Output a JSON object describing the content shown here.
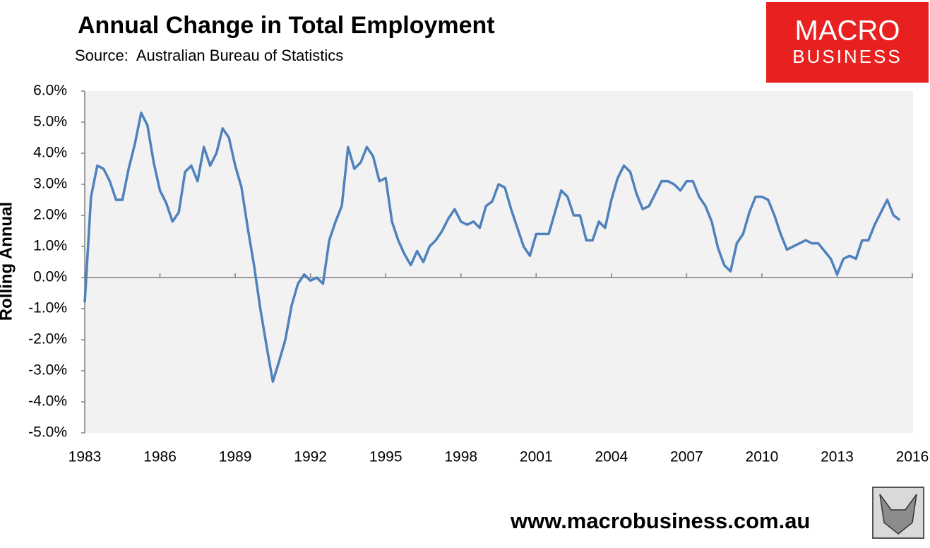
{
  "chart_data": {
    "type": "line",
    "title": "Annual Change in Total Employment",
    "subtitle": "Source:  Australian Bureau of Statistics",
    "y_label": "Rolling Annual",
    "xlim": [
      1983,
      2016
    ],
    "xticks": [
      1983,
      1986,
      1989,
      1992,
      1995,
      1998,
      2001,
      2004,
      2007,
      2010,
      2013,
      2016
    ],
    "ylim": [
      -5,
      6
    ],
    "yticks": [
      {
        "value": -5,
        "label": "-5.0%"
      },
      {
        "value": -4,
        "label": "-4.0%"
      },
      {
        "value": -3,
        "label": "-3.0%"
      },
      {
        "value": -2,
        "label": "-2.0%"
      },
      {
        "value": -1,
        "label": "-1.0%"
      },
      {
        "value": 0,
        "label": "0.0%"
      },
      {
        "value": 1,
        "label": "1.0%"
      },
      {
        "value": 2,
        "label": "2.0%"
      },
      {
        "value": 3,
        "label": "3.0%"
      },
      {
        "value": 4,
        "label": "4.0%"
      },
      {
        "value": 5,
        "label": "5.0%"
      },
      {
        "value": 6,
        "label": "6.0%"
      }
    ],
    "zero_line": true,
    "grid": false,
    "x": [
      1983,
      1983.25,
      1983.5,
      1983.75,
      1984,
      1984.25,
      1984.5,
      1984.75,
      1985,
      1985.25,
      1985.5,
      1985.75,
      1986,
      1986.25,
      1986.5,
      1986.75,
      1987,
      1987.25,
      1987.5,
      1987.75,
      1988,
      1988.25,
      1988.5,
      1988.75,
      1989,
      1989.25,
      1989.5,
      1989.75,
      1990,
      1990.25,
      1990.5,
      1990.75,
      1991,
      1991.25,
      1991.5,
      1991.75,
      1992,
      1992.25,
      1992.5,
      1992.75,
      1993,
      1993.25,
      1993.5,
      1993.75,
      1994,
      1994.25,
      1994.5,
      1994.75,
      1995,
      1995.25,
      1995.5,
      1995.75,
      1996,
      1996.25,
      1996.5,
      1996.75,
      1997,
      1997.25,
      1997.5,
      1997.75,
      1998,
      1998.25,
      1998.5,
      1998.75,
      1999,
      1999.25,
      1999.5,
      1999.75,
      2000,
      2000.25,
      2000.5,
      2000.75,
      2001,
      2001.25,
      2001.5,
      2001.75,
      2002,
      2002.25,
      2002.5,
      2002.75,
      2003,
      2003.25,
      2003.5,
      2003.75,
      2004,
      2004.25,
      2004.5,
      2004.75,
      2005,
      2005.25,
      2005.5,
      2005.75,
      2006,
      2006.25,
      2006.5,
      2006.75,
      2007,
      2007.25,
      2007.5,
      2007.75,
      2008,
      2008.25,
      2008.5,
      2008.75,
      2009,
      2009.25,
      2009.5,
      2009.75,
      2010,
      2010.25,
      2010.5,
      2010.75,
      2011,
      2011.25,
      2011.5,
      2011.75,
      2012,
      2012.25,
      2012.5,
      2012.75,
      2013,
      2013.25,
      2013.5,
      2013.75,
      2014,
      2014.25,
      2014.5,
      2014.75,
      2015,
      2015.25,
      2015.5
    ],
    "series": [
      {
        "name": "Rolling Annual",
        "color": "#4f81bd",
        "values": [
          -0.8,
          2.6,
          3.6,
          3.5,
          3.1,
          2.5,
          2.5,
          3.5,
          4.3,
          5.3,
          4.9,
          3.7,
          2.8,
          2.4,
          1.8,
          2.1,
          3.4,
          3.6,
          3.1,
          4.2,
          3.6,
          4.0,
          4.8,
          4.5,
          3.6,
          2.9,
          1.6,
          0.4,
          -1.0,
          -2.2,
          -3.35,
          -2.7,
          -2.0,
          -0.9,
          -0.2,
          0.1,
          -0.1,
          0.0,
          -0.2,
          1.2,
          1.8,
          2.3,
          4.2,
          3.5,
          3.7,
          4.2,
          3.9,
          3.1,
          3.2,
          1.8,
          1.2,
          0.75,
          0.4,
          0.85,
          0.5,
          1.0,
          1.2,
          1.5,
          1.9,
          2.2,
          1.8,
          1.7,
          1.8,
          1.6,
          2.3,
          2.45,
          3.0,
          2.9,
          2.2,
          1.6,
          1.0,
          0.7,
          1.4,
          1.4,
          1.4,
          2.1,
          2.8,
          2.6,
          2.0,
          2.0,
          1.2,
          1.2,
          1.8,
          1.6,
          2.5,
          3.2,
          3.6,
          3.4,
          2.7,
          2.2,
          2.3,
          2.7,
          3.1,
          3.1,
          3.0,
          2.8,
          3.1,
          3.1,
          2.6,
          2.3,
          1.8,
          0.95,
          0.4,
          0.2,
          1.1,
          1.4,
          2.1,
          2.6,
          2.6,
          2.5,
          2.0,
          1.4,
          0.9,
          1.0,
          1.1,
          1.2,
          1.1,
          1.1,
          0.85,
          0.6,
          0.1,
          0.6,
          0.7,
          0.6,
          1.2,
          1.2,
          1.7,
          2.1,
          2.5,
          2.0,
          1.85
        ]
      }
    ]
  },
  "branding": {
    "logo_line1": "MACRO",
    "logo_line2": "BUSINESS",
    "website": "www.macrobusiness.com.au"
  }
}
